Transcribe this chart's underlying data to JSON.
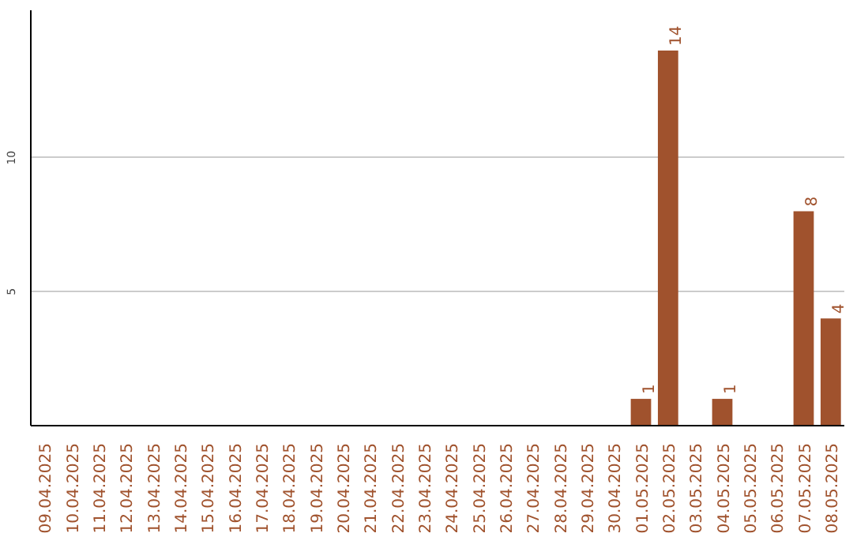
{
  "chart_data": {
    "type": "bar",
    "categories": [
      "09.04.2025",
      "10.04.2025",
      "11.04.2025",
      "12.04.2025",
      "13.04.2025",
      "14.04.2025",
      "15.04.2025",
      "16.04.2025",
      "17.04.2025",
      "18.04.2025",
      "19.04.2025",
      "20.04.2025",
      "21.04.2025",
      "22.04.2025",
      "23.04.2025",
      "24.04.2025",
      "25.04.2025",
      "26.04.2025",
      "27.04.2025",
      "28.04.2025",
      "29.04.2025",
      "30.04.2025",
      "01.05.2025",
      "02.05.2025",
      "03.05.2025",
      "04.05.2025",
      "05.05.2025",
      "06.05.2025",
      "07.05.2025",
      "08.05.2025"
    ],
    "values": [
      0,
      0,
      0,
      0,
      0,
      0,
      0,
      0,
      0,
      0,
      0,
      0,
      0,
      0,
      0,
      0,
      0,
      0,
      0,
      0,
      0,
      0,
      1,
      14,
      0,
      1,
      0,
      0,
      8,
      4
    ],
    "value_labels": [
      null,
      null,
      null,
      null,
      null,
      null,
      null,
      null,
      null,
      null,
      null,
      null,
      null,
      null,
      null,
      null,
      null,
      null,
      null,
      null,
      null,
      null,
      "1",
      "14",
      null,
      "1",
      null,
      null,
      "8",
      "4"
    ],
    "color": "#a0522d",
    "ylim": [
      0,
      15.5
    ],
    "yticks": [
      5,
      10
    ],
    "grid": "y"
  }
}
